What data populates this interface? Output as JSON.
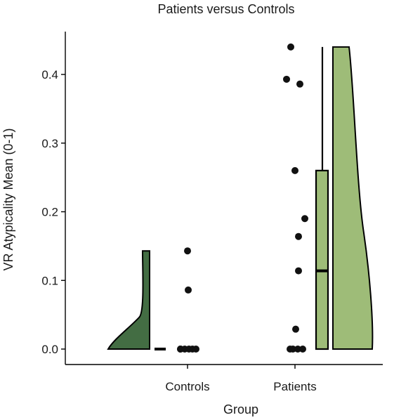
{
  "chart_data": {
    "type": "raincloud",
    "title": "Patients versus Controls",
    "xlabel": "Group",
    "ylabel": "VR Atypicality Mean (0-1)",
    "ylim": [
      -0.023,
      0.46
    ],
    "yticks": [
      "0.0",
      "0.1",
      "0.2",
      "0.3",
      "0.4"
    ],
    "yticks_values": [
      0.0,
      0.1,
      0.2,
      0.3,
      0.4
    ],
    "grid": false,
    "groups": [
      {
        "name": "Controls",
        "color": "#436d43",
        "points": [
          0.0,
          0.0,
          0.0,
          0.0,
          0.0,
          0.0,
          0.086,
          0.143
        ],
        "box": {
          "min": 0.0,
          "q1": 0.0,
          "median": 0.0,
          "q3": 0.0,
          "max": 0.0
        },
        "violin": {
          "min": 0.0,
          "max": 0.143
        }
      },
      {
        "name": "Patients",
        "color": "#9ebc78",
        "points": [
          0.0,
          0.0,
          0.0,
          0.0,
          0.029,
          0.114,
          0.164,
          0.19,
          0.26,
          0.386,
          0.393,
          0.44
        ],
        "box": {
          "min": 0.0,
          "q1": 0.0,
          "median": 0.114,
          "q3": 0.26,
          "max": 0.44
        },
        "violin": {
          "min": 0.0,
          "max": 0.44
        }
      }
    ]
  }
}
